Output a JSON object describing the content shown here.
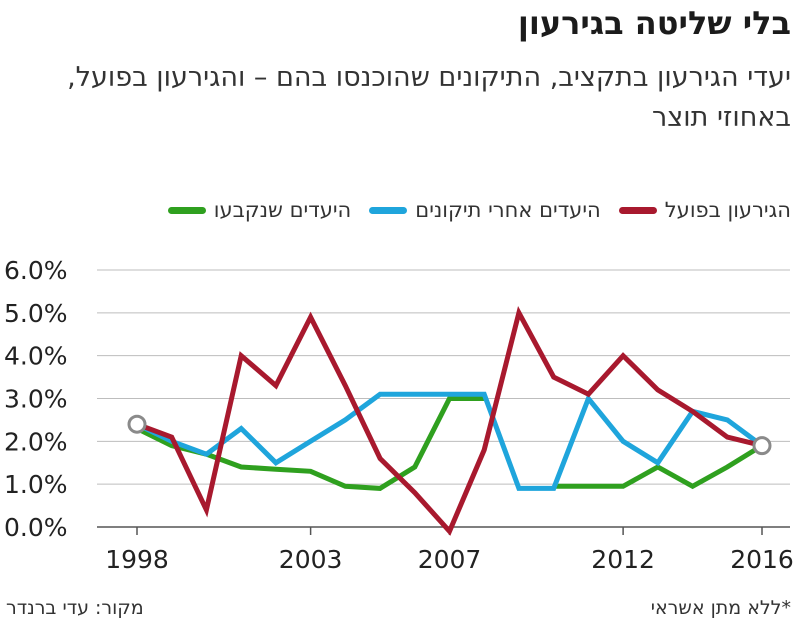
{
  "header": {
    "title": "בלי שליטה בגירעון",
    "subtitle": "יעדי הגירעון בתקציב, התיקונים שהוכנסו בהם – והגירעון בפועל, באחוזי תוצר"
  },
  "footer": {
    "source": "מקור: עדי ברנדר",
    "note": "*ללא מתן אשראי"
  },
  "chart_data": {
    "type": "line",
    "x": [
      1998,
      1999,
      2000,
      2001,
      2002,
      2003,
      2004,
      2005,
      2006,
      2007,
      2008,
      2009,
      2010,
      2011,
      2012,
      2013,
      2014,
      2015,
      2016
    ],
    "xticks": [
      1998,
      2003,
      2007,
      2012,
      2016
    ],
    "ylim": [
      0,
      6
    ],
    "yticks": [
      "0.0%",
      "1.0%",
      "2.0%",
      "3.0%",
      "4.0%",
      "5.0%",
      "6.0%"
    ],
    "grid": true,
    "legend_position": "top",
    "series": [
      {
        "name": "הגירעון בפועל",
        "color": "#a8192e",
        "values": [
          2.4,
          2.1,
          0.4,
          4.0,
          3.3,
          4.9,
          3.3,
          1.6,
          0.8,
          -0.1,
          1.8,
          5.0,
          3.5,
          3.1,
          4.0,
          3.2,
          2.7,
          2.1,
          1.9
        ]
      },
      {
        "name": "היעדים אחרי תיקונים",
        "color": "#1fa5dc",
        "values": [
          2.4,
          2.0,
          1.7,
          2.3,
          1.5,
          2.0,
          2.5,
          3.1,
          3.1,
          3.1,
          3.1,
          0.9,
          0.9,
          3.0,
          2.0,
          1.5,
          2.7,
          2.5,
          1.9
        ]
      },
      {
        "name": "היעדים שנקבעו",
        "color": "#2fa01f",
        "values": [
          2.3,
          1.9,
          1.7,
          1.4,
          1.35,
          1.3,
          0.95,
          0.9,
          1.4,
          3.0,
          3.0,
          null,
          0.95,
          0.95,
          0.95,
          1.4,
          0.95,
          1.4,
          1.9
        ]
      }
    ],
    "endpoint_markers": [
      {
        "x": 1998,
        "y": 2.4
      },
      {
        "x": 2016,
        "y": 1.9
      }
    ]
  }
}
